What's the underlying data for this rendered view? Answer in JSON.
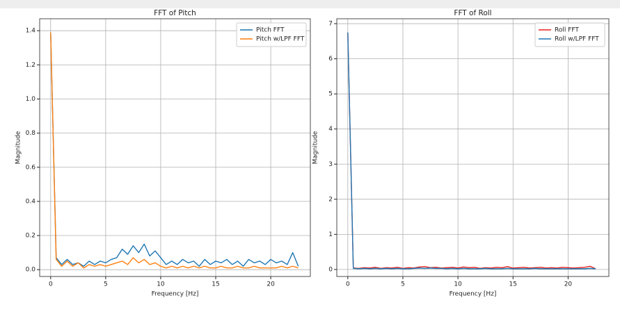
{
  "chart_data": [
    {
      "type": "line",
      "title": "FFT of Pitch",
      "xlabel": "Frequency [Hz]",
      "ylabel": "Magnitude",
      "x": [
        0,
        0.5,
        1,
        1.5,
        2,
        2.5,
        3,
        3.5,
        4,
        4.5,
        5,
        5.5,
        6,
        6.5,
        7,
        7.5,
        8,
        8.5,
        9,
        9.5,
        10,
        10.5,
        11,
        11.5,
        12,
        12.5,
        13,
        13.5,
        14,
        14.5,
        15,
        15.5,
        16,
        16.5,
        17,
        17.5,
        18,
        18.5,
        19,
        19.5,
        20,
        20.5,
        21,
        21.5,
        22,
        22.5
      ],
      "series": [
        {
          "name": "Pitch FFT",
          "color": "#1f77b4",
          "values": [
            1.39,
            0.07,
            0.03,
            0.06,
            0.03,
            0.04,
            0.02,
            0.05,
            0.03,
            0.05,
            0.04,
            0.06,
            0.07,
            0.12,
            0.09,
            0.14,
            0.1,
            0.15,
            0.08,
            0.11,
            0.07,
            0.03,
            0.05,
            0.03,
            0.06,
            0.04,
            0.05,
            0.02,
            0.06,
            0.03,
            0.05,
            0.04,
            0.06,
            0.03,
            0.05,
            0.02,
            0.06,
            0.04,
            0.05,
            0.03,
            0.06,
            0.04,
            0.05,
            0.03,
            0.1,
            0.02
          ]
        },
        {
          "name": "Pitch w/LPF FFT",
          "color": "#ff7f0e",
          "values": [
            1.39,
            0.06,
            0.02,
            0.05,
            0.02,
            0.04,
            0.01,
            0.03,
            0.02,
            0.03,
            0.02,
            0.03,
            0.04,
            0.05,
            0.03,
            0.07,
            0.04,
            0.06,
            0.03,
            0.04,
            0.02,
            0.01,
            0.02,
            0.01,
            0.02,
            0.01,
            0.02,
            0.01,
            0.02,
            0.01,
            0.01,
            0.02,
            0.01,
            0.01,
            0.02,
            0.01,
            0.01,
            0.02,
            0.01,
            0.01,
            0.01,
            0.01,
            0.02,
            0.01,
            0.02,
            0.01
          ]
        }
      ],
      "xlim": [
        -1.0,
        23.6
      ],
      "ylim": [
        -0.04,
        1.47
      ],
      "xticks": [
        0,
        5,
        10,
        15,
        20
      ],
      "yticks": [
        {
          "value": 0,
          "label": "0.0"
        },
        0.2,
        0.4,
        0.6,
        0.8,
        {
          "value": 1,
          "label": "1.0"
        },
        1.2,
        1.4
      ],
      "grid": true,
      "legend": "upper right"
    },
    {
      "type": "line",
      "title": "FFT of Roll",
      "xlabel": "Frequency [Hz]",
      "ylabel": "Magnitude",
      "x": [
        0,
        0.5,
        1,
        1.5,
        2,
        2.5,
        3,
        3.5,
        4,
        4.5,
        5,
        5.5,
        6,
        6.5,
        7,
        7.5,
        8,
        8.5,
        9,
        9.5,
        10,
        10.5,
        11,
        11.5,
        12,
        12.5,
        13,
        13.5,
        14,
        14.5,
        15,
        15.5,
        16,
        16.5,
        17,
        17.5,
        18,
        18.5,
        19,
        19.5,
        20,
        20.5,
        21,
        21.5,
        22,
        22.5
      ],
      "series": [
        {
          "name": "Roll FFT",
          "color": "#e8211c",
          "values": [
            6.75,
            0.04,
            0.03,
            0.05,
            0.04,
            0.06,
            0.03,
            0.05,
            0.04,
            0.06,
            0.03,
            0.05,
            0.04,
            0.07,
            0.08,
            0.05,
            0.06,
            0.04,
            0.05,
            0.06,
            0.04,
            0.07,
            0.05,
            0.06,
            0.03,
            0.05,
            0.04,
            0.06,
            0.05,
            0.08,
            0.04,
            0.05,
            0.06,
            0.04,
            0.05,
            0.06,
            0.04,
            0.05,
            0.04,
            0.06,
            0.05,
            0.04,
            0.05,
            0.06,
            0.09,
            0.02
          ]
        },
        {
          "name": "Roll w/LPF FFT",
          "color": "#1f77b4",
          "values": [
            6.75,
            0.03,
            0.02,
            0.03,
            0.02,
            0.03,
            0.02,
            0.03,
            0.02,
            0.03,
            0.02,
            0.02,
            0.03,
            0.04,
            0.03,
            0.04,
            0.03,
            0.03,
            0.02,
            0.03,
            0.02,
            0.03,
            0.02,
            0.02,
            0.02,
            0.03,
            0.02,
            0.02,
            0.02,
            0.03,
            0.02,
            0.02,
            0.02,
            0.02,
            0.03,
            0.02,
            0.02,
            0.02,
            0.02,
            0.02,
            0.02,
            0.02,
            0.02,
            0.02,
            0.03,
            0.02
          ]
        }
      ],
      "xlim": [
        -1.0,
        23.7
      ],
      "ylim": [
        -0.2,
        7.14
      ],
      "xticks": [
        0,
        5,
        10,
        15,
        20
      ],
      "yticks": [
        0,
        1,
        2,
        3,
        4,
        5,
        6,
        7
      ],
      "grid": true,
      "legend": "upper right"
    }
  ]
}
